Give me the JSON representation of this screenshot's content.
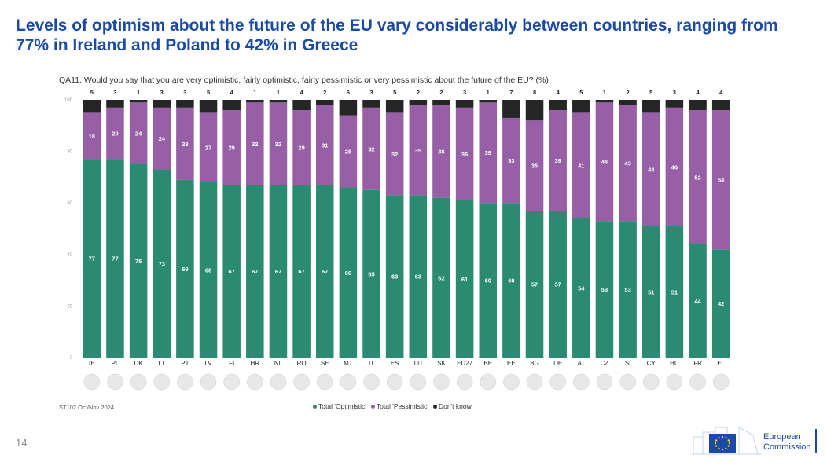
{
  "page": {
    "title": "Levels of optimism about the future of the EU vary considerably between countries, ranging from 77% in Ireland and Poland to 42% in Greece",
    "question": "QA11. Would you say that you are very optimistic, fairly optimistic, fairly pessimistic or very pessimistic about the future of the EU? (%)",
    "source": "ST102 Oct/Nov 2024",
    "page_number": "14",
    "logo_line1": "European",
    "logo_line2": "Commission"
  },
  "colors": {
    "optimistic": "#2a8a72",
    "pessimistic": "#965fa6",
    "dont_know": "#262626",
    "title": "#1a4aa5"
  },
  "chart_data": {
    "type": "bar",
    "stacked": true,
    "categories": [
      "IE",
      "PL",
      "DK",
      "LT",
      "PT",
      "LV",
      "FI",
      "HR",
      "NL",
      "RO",
      "SE",
      "MT",
      "IT",
      "ES",
      "LU",
      "SK",
      "EU27",
      "BE",
      "EE",
      "BG",
      "DE",
      "AT",
      "CZ",
      "SI",
      "CY",
      "HU",
      "FR",
      "EL"
    ],
    "series": [
      {
        "name": "Total 'Optimistic'",
        "values": [
          77,
          77,
          75,
          73,
          69,
          68,
          67,
          67,
          67,
          67,
          67,
          66,
          65,
          63,
          63,
          62,
          61,
          60,
          60,
          57,
          57,
          54,
          53,
          53,
          51,
          51,
          44,
          42
        ]
      },
      {
        "name": "Total 'Pessimistic'",
        "values": [
          18,
          20,
          24,
          24,
          28,
          27,
          29,
          32,
          32,
          29,
          31,
          28,
          32,
          32,
          35,
          36,
          36,
          39,
          33,
          35,
          39,
          41,
          46,
          45,
          44,
          46,
          52,
          54
        ]
      },
      {
        "name": "Don't know",
        "values": [
          5,
          3,
          1,
          3,
          3,
          5,
          4,
          1,
          1,
          4,
          2,
          6,
          3,
          5,
          2,
          2,
          3,
          1,
          7,
          8,
          4,
          5,
          1,
          2,
          5,
          3,
          4,
          4
        ]
      }
    ],
    "yticks": [
      "0",
      "20",
      "40",
      "60",
      "80",
      "100"
    ],
    "ylim": [
      0,
      100
    ],
    "legend_position": "bottom"
  }
}
